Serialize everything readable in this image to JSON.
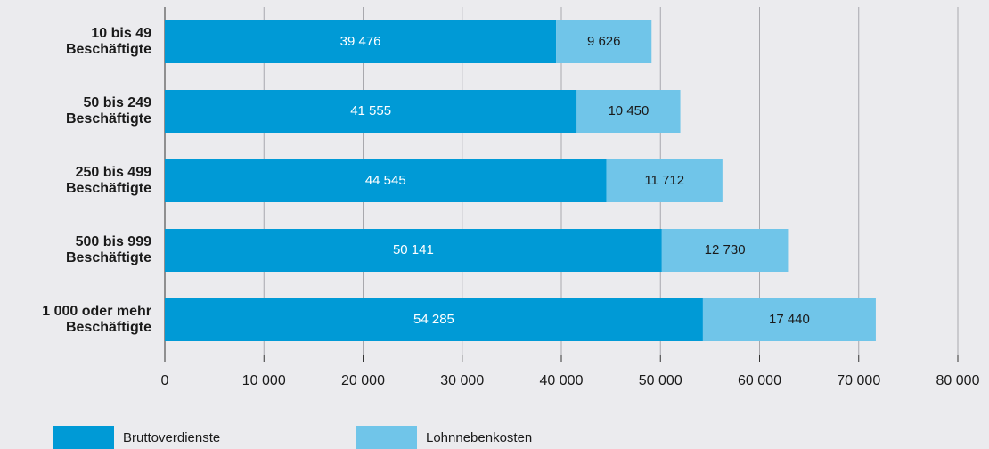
{
  "chart_data": {
    "type": "stacked-barh",
    "categories": [
      [
        "10 bis 49",
        "Beschäftigte"
      ],
      [
        "50 bis 249",
        "Beschäftigte"
      ],
      [
        "250 bis 499",
        "Beschäftigte"
      ],
      [
        "500 bis 999",
        "Beschäftigte"
      ],
      [
        "1 000 oder mehr",
        "Beschäftigte"
      ]
    ],
    "series": [
      {
        "name": "Bruttoverdienste",
        "color": "#009ad6",
        "label_color": "#ffffff",
        "values": [
          39476,
          41555,
          44545,
          50141,
          54285
        ],
        "value_labels": [
          "39 476",
          "41 555",
          "44 545",
          "50 141",
          "54 285"
        ]
      },
      {
        "name": "Lohnnebenkosten",
        "color": "#70c5e9",
        "label_color": "#1a1a1a",
        "values": [
          9626,
          10450,
          11712,
          12730,
          17440
        ],
        "value_labels": [
          "9 626",
          "10 450",
          "11 712",
          "12 730",
          "17 440"
        ]
      }
    ],
    "xlim": [
      0,
      80000
    ],
    "xticks": [
      0,
      {
        "value": 10000,
        "label": "10 000"
      },
      {
        "value": 20000,
        "label": "20 000"
      },
      {
        "value": 30000,
        "label": "30 000"
      },
      {
        "value": 40000,
        "label": "40 000"
      },
      {
        "value": 50000,
        "label": "50 000"
      },
      {
        "value": 60000,
        "label": "60 000"
      },
      {
        "value": 70000,
        "label": "70 000"
      },
      {
        "value": 80000,
        "label": "80 000"
      }
    ],
    "grid": true
  }
}
